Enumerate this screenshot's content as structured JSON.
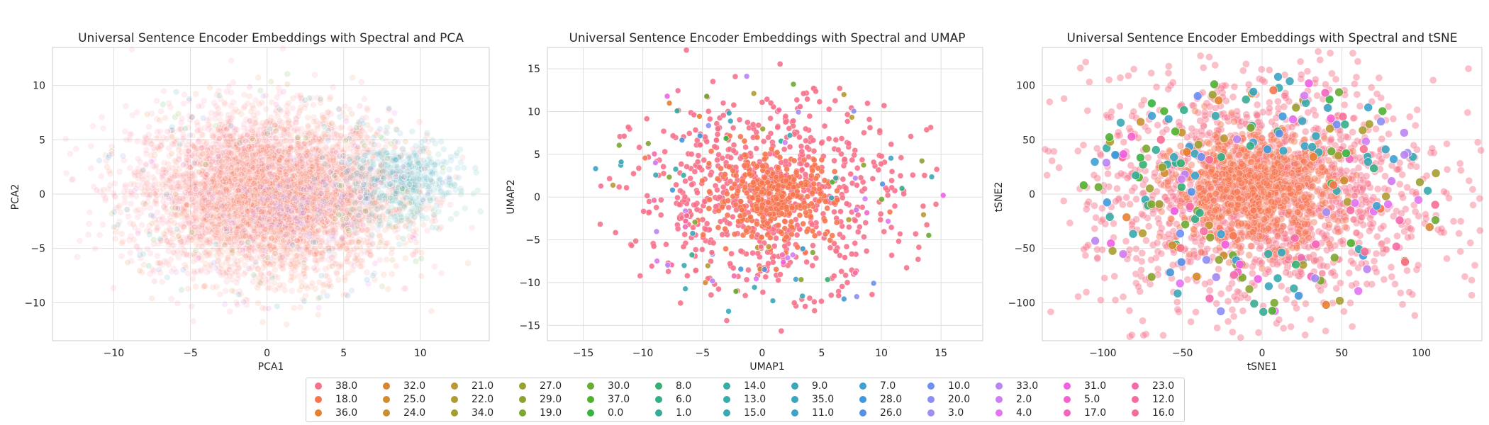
{
  "chart_data": [
    {
      "type": "scatter",
      "title": "Universal Sentence Encoder Embeddings with Spectral and PCA",
      "xlabel": "PCA1",
      "ylabel": "PCA2",
      "xlim": [
        -14,
        14.5
      ],
      "ylim": [
        -13.5,
        13.5
      ],
      "xticks": [
        -10,
        -5,
        0,
        5,
        10
      ],
      "yticks": [
        -10,
        -5,
        0,
        5,
        10
      ],
      "grid": true,
      "point_alpha": 0.12,
      "clusters": [
        {
          "label": "38.0",
          "cx": -0.5,
          "cy": 0.5,
          "sx": 4.2,
          "sy": 3.6
        },
        {
          "label": "18.0",
          "cx": 1.0,
          "cy": -0.5,
          "sx": 3.8,
          "sy": 3.4
        },
        {
          "label": "14.0",
          "cx": 8.5,
          "cy": 0.5,
          "sx": 2.0,
          "sy": 1.8
        },
        {
          "label": "9.0",
          "cx": 9.0,
          "cy": 2.0,
          "sx": 1.8,
          "sy": 1.6
        },
        {
          "label": "33.0",
          "cx": 2.0,
          "cy": -1.0,
          "sx": 2.5,
          "sy": 2.0
        }
      ]
    },
    {
      "type": "scatter",
      "title": "Universal Sentence Encoder Embeddings with Spectral and UMAP",
      "xlabel": "UMAP1",
      "ylabel": "UMAP2",
      "xlim": [
        -18,
        18.5
      ],
      "ylim": [
        -16.8,
        17.5
      ],
      "xticks": [
        -15,
        -10,
        -5,
        0,
        5,
        10,
        15
      ],
      "yticks": [
        -15,
        -10,
        -5,
        0,
        5,
        10,
        15
      ],
      "grid": true,
      "point_alpha": 0.9,
      "clusters": [
        {
          "label": "38.0",
          "cx": 0.5,
          "cy": 0.5,
          "sx": 5.5,
          "sy": 5.5
        },
        {
          "label": "18.0",
          "cx": 1.0,
          "cy": 0.0,
          "sx": 2.5,
          "sy": 2.5
        }
      ]
    },
    {
      "type": "scatter",
      "title": "Universal Sentence Encoder Embeddings with Spectral and tSNE",
      "xlabel": "tSNE1",
      "ylabel": "tSNE2",
      "xlim": [
        -138,
        138
      ],
      "ylim": [
        -135,
        135
      ],
      "xticks": [
        -100,
        -50,
        0,
        50,
        100
      ],
      "yticks": [
        -100,
        -50,
        0,
        50,
        100
      ],
      "grid": true,
      "point_alpha": 0.45,
      "clusters": [
        {
          "label": "38.0",
          "cx": 0.0,
          "cy": 0.0,
          "sx": 55,
          "sy": 55
        },
        {
          "label": "18.0",
          "cx": -5.0,
          "cy": 5.0,
          "sx": 25,
          "sy": 25
        }
      ]
    }
  ],
  "legend": {
    "placement": "bottom-center",
    "columns": 13,
    "entries": [
      {
        "label": "38.0",
        "color": "#f77189"
      },
      {
        "label": "18.0",
        "color": "#f7754f"
      },
      {
        "label": "36.0",
        "color": "#e6812d"
      },
      {
        "label": "32.0",
        "color": "#d8852f"
      },
      {
        "label": "25.0",
        "color": "#d28c30"
      },
      {
        "label": "24.0",
        "color": "#c89031"
      },
      {
        "label": "21.0",
        "color": "#bb9832"
      },
      {
        "label": "22.0",
        "color": "#b09b32"
      },
      {
        "label": "34.0",
        "color": "#a69e31"
      },
      {
        "label": "27.0",
        "color": "#9aa131"
      },
      {
        "label": "29.0",
        "color": "#8ba431"
      },
      {
        "label": "19.0",
        "color": "#7ca731"
      },
      {
        "label": "30.0",
        "color": "#6aab31"
      },
      {
        "label": "37.0",
        "color": "#50b131"
      },
      {
        "label": "0.0",
        "color": "#38b340"
      },
      {
        "label": "8.0",
        "color": "#33b071"
      },
      {
        "label": "6.0",
        "color": "#34ae87"
      },
      {
        "label": "1.0",
        "color": "#35ac96"
      },
      {
        "label": "14.0",
        "color": "#36ada4"
      },
      {
        "label": "13.0",
        "color": "#37abae"
      },
      {
        "label": "15.0",
        "color": "#38a9b4"
      },
      {
        "label": "9.0",
        "color": "#39a7ba"
      },
      {
        "label": "35.0",
        "color": "#3aa5c0"
      },
      {
        "label": "11.0",
        "color": "#3ca3c8"
      },
      {
        "label": "7.0",
        "color": "#3ea0d3"
      },
      {
        "label": "28.0",
        "color": "#4199dc"
      },
      {
        "label": "26.0",
        "color": "#5490ea"
      },
      {
        "label": "10.0",
        "color": "#6e8ff4"
      },
      {
        "label": "20.0",
        "color": "#8c8ef4"
      },
      {
        "label": "3.0",
        "color": "#a18cf4"
      },
      {
        "label": "33.0",
        "color": "#bb83f4"
      },
      {
        "label": "2.0",
        "color": "#d17ef4"
      },
      {
        "label": "4.0",
        "color": "#e373f3"
      },
      {
        "label": "31.0",
        "color": "#f05fe4"
      },
      {
        "label": "5.0",
        "color": "#f561d1"
      },
      {
        "label": "17.0",
        "color": "#f565c0"
      },
      {
        "label": "23.0",
        "color": "#f56aae"
      },
      {
        "label": "12.0",
        "color": "#f66ca1"
      },
      {
        "label": "16.0",
        "color": "#f66e96"
      }
    ]
  }
}
